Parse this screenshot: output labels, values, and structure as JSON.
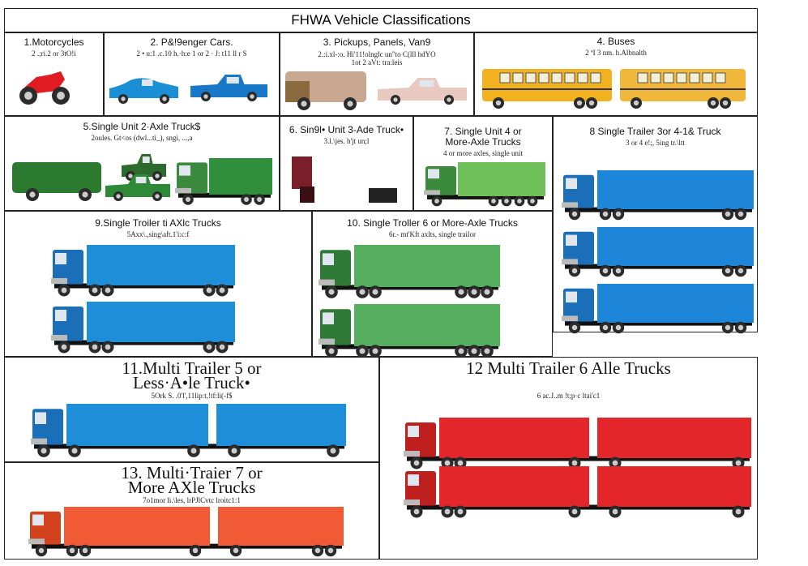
{
  "title": "FHWA Vehicle Classifications",
  "classes": [
    {
      "name": "1.Motorcycles",
      "description": "2 .;ri.2 or 3tO!i"
    },
    {
      "name": "2. P&!9enger Cars.",
      "description": "2 • u:1 .c.10 h.·h:e 1 or 2 · J: t11 ll r S"
    },
    {
      "name": "3. Pickups, Panels, Van9",
      "description": "2.:i.xl-:o. Hi'11!olnglc un\"to C(lll hdYO 1ot 2 aVt: tra:leis"
    },
    {
      "name": "4. Buses",
      "description": "2 ºI 3 nm. h.Albnalth"
    },
    {
      "name": "5.Single Unit 2·Axle Truck$",
      "description": "2oules. Gt<os (dwl...ti_), sngi, ...,a"
    },
    {
      "name": "6. Sin9l• Unit 3-Ade Truck•",
      "description": "3.l.\\jes. h'jt un;l"
    },
    {
      "name": "7. Single Unit 4 or More-Axle Trucks",
      "description": "4 or more axles, single unit"
    },
    {
      "name": "8 Single Trailer 3or 4-1& Truck",
      "description": "3 or 4 e!;, 5ing tr.\\ltt"
    },
    {
      "name": "9.Single Troiler ti AXlc Trucks",
      "description": "5Axx\\.,sing\\aft.1'i:c:f"
    },
    {
      "name": "10. Single Troller 6 or More-Axle Trucks",
      "description": "6r.- mt'Kft axlts, single trailor"
    },
    {
      "name": "11.Multi Trailer 5 or Less·A•le Truck•",
      "description": "5Ork S. .0'l',11lip:t,!tf:li(-f$"
    },
    {
      "name": "12 Multi Trailer 6 Alle Trucks",
      "description": "6 ac.J..m !t;p·c ltai'c1"
    },
    {
      "name": "13. Multi·Traier 7 or More AXle Trucks",
      "description": "7o1mor li.\\les, lrPJlCvtc lroitc1:1"
    }
  ]
}
